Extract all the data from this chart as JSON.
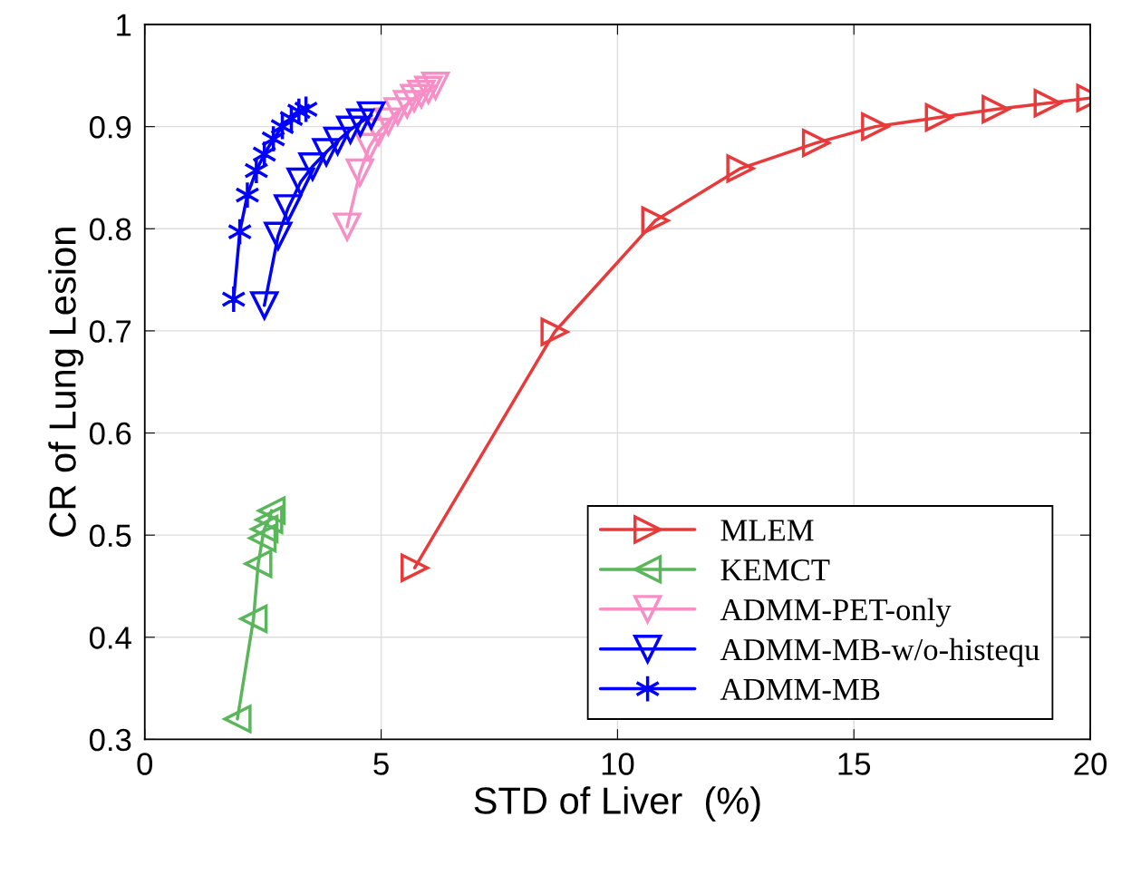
{
  "chart_data": {
    "type": "line",
    "xlabel": "STD of Liver  (%)",
    "ylabel": "CR of Lung Lesion",
    "xlim": [
      0,
      20
    ],
    "ylim": [
      0.3,
      1
    ],
    "xticks": [
      0,
      5,
      10,
      15,
      20
    ],
    "yticks": [
      0.3,
      0.4,
      0.5,
      0.6,
      0.7,
      0.8,
      0.9,
      1
    ],
    "grid": true,
    "legend": "bottom right",
    "line_style": "solid",
    "series": [
      {
        "name": "MLEM",
        "color": "#e83a3a",
        "marker": "triangle-right",
        "x": [
          5.71,
          8.67,
          10.8,
          12.6,
          14.2,
          15.45,
          16.8,
          18.0,
          19.1,
          20.0
        ],
        "values": [
          0.468,
          0.699,
          0.808,
          0.859,
          0.884,
          0.9,
          0.909,
          0.917,
          0.923,
          0.928
        ]
      },
      {
        "name": "KEMCT",
        "color": "#5ab65a",
        "marker": "triangle-left",
        "x": [
          1.96,
          2.3,
          2.4,
          2.49,
          2.53,
          2.63,
          2.68
        ],
        "values": [
          0.32,
          0.418,
          0.472,
          0.497,
          0.506,
          0.515,
          0.524
        ]
      },
      {
        "name": "ADMM-PET-only",
        "color": "#f78fc6",
        "marker": "triangle-down",
        "x": [
          4.28,
          4.55,
          4.75,
          4.95,
          5.15,
          5.35,
          5.55,
          5.7,
          5.85,
          6.0,
          6.15
        ],
        "values": [
          0.802,
          0.855,
          0.88,
          0.895,
          0.905,
          0.915,
          0.922,
          0.928,
          0.932,
          0.936,
          0.94
        ]
      },
      {
        "name": "ADMM-MB-w/o-histequ",
        "color": "#0000ff",
        "marker": "triangle-down",
        "x": [
          2.53,
          2.82,
          3.03,
          3.3,
          3.55,
          3.84,
          4.08,
          4.35,
          4.56,
          4.79
        ],
        "values": [
          0.725,
          0.793,
          0.82,
          0.846,
          0.861,
          0.875,
          0.886,
          0.897,
          0.904,
          0.911
        ]
      },
      {
        "name": "ADMM-MB",
        "color": "#0000ff",
        "marker": "cross",
        "x": [
          1.88,
          2.01,
          2.17,
          2.36,
          2.53,
          2.72,
          2.91,
          3.1,
          3.26,
          3.41
        ],
        "values": [
          0.731,
          0.797,
          0.833,
          0.857,
          0.873,
          0.888,
          0.9,
          0.908,
          0.915,
          0.917
        ]
      }
    ]
  }
}
